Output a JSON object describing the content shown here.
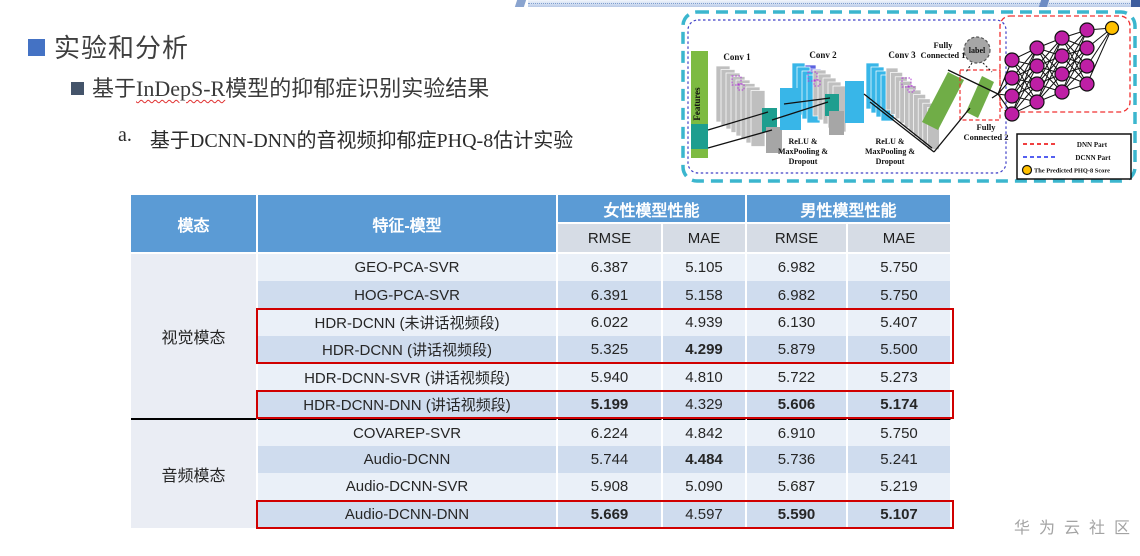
{
  "slide": {
    "title": "实验和分析",
    "subtitle_prefix": "基于",
    "subtitle_term": "InDepS-R",
    "subtitle_suffix": "模型的抑郁症识别实验结果",
    "item_label": "a.",
    "item_text": "基于DCNN-DNN的音视频抑郁症PHQ-8估计实验",
    "watermark": "华为云社区"
  },
  "table": {
    "col_headers": [
      "模态",
      "特征-模型"
    ],
    "group_headers": [
      "女性模型性能",
      "男性模型性能"
    ],
    "sub_headers": [
      "RMSE",
      "MAE",
      "RMSE",
      "MAE"
    ],
    "sections": [
      {
        "modality": "视觉模态",
        "rows": [
          {
            "feature": "GEO-PCA-SVR",
            "values": [
              "6.387",
              "5.105",
              "6.982",
              "5.750"
            ],
            "bold": [
              false,
              false,
              false,
              false
            ]
          },
          {
            "feature": "HOG-PCA-SVR",
            "values": [
              "6.391",
              "5.158",
              "6.982",
              "5.750"
            ],
            "bold": [
              false,
              false,
              false,
              false
            ]
          },
          {
            "feature": "HDR-DCNN (未讲话视频段)",
            "values": [
              "6.022",
              "4.939",
              "6.130",
              "5.407"
            ],
            "bold": [
              false,
              false,
              false,
              false
            ]
          },
          {
            "feature": "HDR-DCNN (讲话视频段)",
            "values": [
              "5.325",
              "4.299",
              "5.879",
              "5.500"
            ],
            "bold": [
              false,
              true,
              false,
              false
            ]
          },
          {
            "feature": "HDR-DCNN-SVR (讲话视频段)",
            "values": [
              "5.940",
              "4.810",
              "5.722",
              "5.273"
            ],
            "bold": [
              false,
              false,
              false,
              false
            ]
          },
          {
            "feature": "HDR-DCNN-DNN (讲话视频段)",
            "values": [
              "5.199",
              "4.329",
              "5.606",
              "5.174"
            ],
            "bold": [
              true,
              false,
              true,
              true
            ]
          }
        ]
      },
      {
        "modality": "音频模态",
        "rows": [
          {
            "feature": "COVAREP-SVR",
            "values": [
              "6.224",
              "4.842",
              "6.910",
              "5.750"
            ],
            "bold": [
              false,
              false,
              false,
              false
            ]
          },
          {
            "feature": "Audio-DCNN",
            "values": [
              "5.744",
              "4.484",
              "5.736",
              "5.241"
            ],
            "bold": [
              false,
              true,
              false,
              false
            ]
          },
          {
            "feature": "Audio-DCNN-SVR",
            "values": [
              "5.908",
              "5.090",
              "5.687",
              "5.219"
            ],
            "bold": [
              false,
              false,
              false,
              false
            ]
          },
          {
            "feature": "Audio-DCNN-DNN",
            "values": [
              "5.669",
              "4.597",
              "5.590",
              "5.107"
            ],
            "bold": [
              true,
              false,
              true,
              true
            ]
          }
        ]
      }
    ]
  },
  "diagram": {
    "features_label": "Features",
    "conv_labels": [
      "Conv 1",
      "Conv 2",
      "Conv 3"
    ],
    "relu_lines": [
      "ReLU &",
      "MaxPooling &",
      "Dropout"
    ],
    "fc1_lines": [
      "Fully",
      "Connected 1"
    ],
    "fc2_lines": [
      "Fully",
      "Connected 2"
    ],
    "label_text": "label",
    "legend": {
      "dnn": "DNN Part",
      "dcnn": "DCNN Part",
      "phq": "The Predicted PHQ-8 Score"
    },
    "colors": {
      "outer_border": "#3BB6CE",
      "dcnn_border": "#4040C8",
      "dnn_border": "#F03030",
      "features_green": "#7DBB42",
      "pool_teal": "#1E9E8F",
      "map_cyan": "#38B6E8",
      "map_gray": "#BFBFBF",
      "fc_green": "#70AD47",
      "node_magenta": "#BE1FA5",
      "output_orange": "#FFC000"
    }
  },
  "table_colors": {
    "header_blue": "#5B9BD5",
    "subheader": "#D6DCE5",
    "row_light": "#EAF0F8",
    "row_dark": "#CFDCEE",
    "modality_col": "#EAEDF4",
    "highlight_red": "#D00000"
  }
}
